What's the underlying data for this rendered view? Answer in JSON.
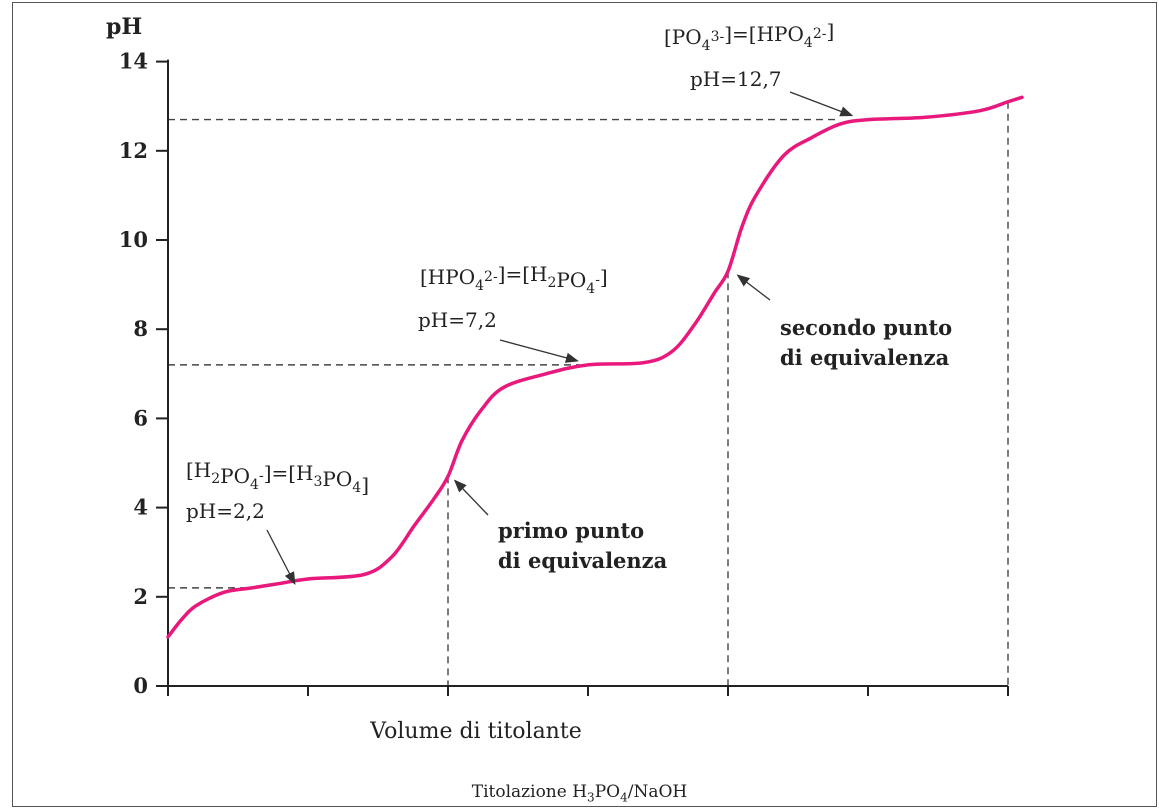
{
  "chart_data": {
    "type": "line",
    "ylabel": "pH",
    "xlabel": "Volume di titolante",
    "yticks": [
      0,
      2,
      4,
      6,
      8,
      10,
      12,
      14
    ],
    "ylim": [
      0,
      14
    ],
    "xlim": [
      0,
      3
    ],
    "x_tick_positions": [
      0,
      0.5,
      1,
      1.5,
      2,
      2.5,
      3
    ],
    "grid": false,
    "curve_color": "#e8187c",
    "series": [
      {
        "values": [
          {
            "x": 0.0,
            "y": 1.1
          },
          {
            "x": 0.05,
            "y": 1.5
          },
          {
            "x": 0.1,
            "y": 1.8
          },
          {
            "x": 0.2,
            "y": 2.1
          },
          {
            "x": 0.3,
            "y": 2.2
          },
          {
            "x": 0.4,
            "y": 2.3
          },
          {
            "x": 0.5,
            "y": 2.4
          },
          {
            "x": 0.7,
            "y": 2.5
          },
          {
            "x": 0.8,
            "y": 2.9
          },
          {
            "x": 0.88,
            "y": 3.6
          },
          {
            "x": 0.95,
            "y": 4.2
          },
          {
            "x": 1.0,
            "y": 4.7
          },
          {
            "x": 1.05,
            "y": 5.5
          },
          {
            "x": 1.12,
            "y": 6.2
          },
          {
            "x": 1.2,
            "y": 6.7
          },
          {
            "x": 1.35,
            "y": 7.0
          },
          {
            "x": 1.5,
            "y": 7.2
          },
          {
            "x": 1.7,
            "y": 7.25
          },
          {
            "x": 1.8,
            "y": 7.5
          },
          {
            "x": 1.88,
            "y": 8.1
          },
          {
            "x": 1.95,
            "y": 8.8
          },
          {
            "x": 2.0,
            "y": 9.3
          },
          {
            "x": 2.05,
            "y": 10.3
          },
          {
            "x": 2.1,
            "y": 11.0
          },
          {
            "x": 2.2,
            "y": 11.9
          },
          {
            "x": 2.3,
            "y": 12.3
          },
          {
            "x": 2.4,
            "y": 12.6
          },
          {
            "x": 2.5,
            "y": 12.7
          },
          {
            "x": 2.7,
            "y": 12.75
          },
          {
            "x": 2.9,
            "y": 12.9
          },
          {
            "x": 3.0,
            "y": 13.1
          },
          {
            "x": 3.05,
            "y": 13.2
          }
        ]
      }
    ],
    "reference_lines": [
      {
        "x": 0.295,
        "y": 2.2
      },
      {
        "x": 1.47,
        "y": 7.2
      },
      {
        "x": 2.4,
        "y": 12.7
      }
    ],
    "equivalence_lines": [
      1.0,
      2.0,
      3.0
    ],
    "annotations": [
      {
        "id": "buffer1",
        "parts": [
          [
            "[H",
            ""
          ],
          [
            "2",
            "sub"
          ],
          [
            "PO",
            ""
          ],
          [
            "4",
            "sub"
          ],
          [
            "-",
            "sup"
          ],
          [
            "]=[H",
            ""
          ],
          [
            "3",
            "sub"
          ],
          [
            "PO",
            ""
          ],
          [
            "4",
            "sub"
          ],
          [
            "]",
            ""
          ]
        ],
        "value": "pH=2,2",
        "point": {
          "x": 0.46,
          "y": 2.2
        }
      },
      {
        "id": "buffer2",
        "parts": [
          [
            "[HPO",
            ""
          ],
          [
            "4",
            "sub"
          ],
          [
            "2-",
            "sup"
          ],
          [
            "]=[H",
            ""
          ],
          [
            "2",
            "sub"
          ],
          [
            "PO",
            ""
          ],
          [
            "4",
            "sub"
          ],
          [
            "-",
            "sup"
          ],
          [
            "]",
            ""
          ]
        ],
        "value": "pH=7,2",
        "point": {
          "x": 1.47,
          "y": 7.2
        }
      },
      {
        "id": "buffer3",
        "parts": [
          [
            "[PO",
            ""
          ],
          [
            "4",
            "sub"
          ],
          [
            "3-",
            "sup"
          ],
          [
            "]=[HPO",
            ""
          ],
          [
            "4",
            "sub"
          ],
          [
            "2-",
            "sup"
          ],
          [
            "]",
            ""
          ]
        ],
        "value": "pH=12,7",
        "point": {
          "x": 2.45,
          "y": 12.7
        }
      }
    ],
    "equivalence_labels": [
      {
        "lines": [
          "primo punto",
          "di equivalenza"
        ],
        "point": {
          "x": 1.01,
          "y": 4.7
        }
      },
      {
        "lines": [
          "secondo punto",
          "di equivalenza"
        ],
        "point": {
          "x": 2.02,
          "y": 9.3
        }
      }
    ],
    "caption": {
      "parts": [
        [
          "Titolazione H",
          ""
        ],
        [
          "3",
          "sub"
        ],
        [
          "PO",
          ""
        ],
        [
          "4",
          "sub"
        ],
        [
          "/NaOH",
          ""
        ]
      ]
    }
  }
}
